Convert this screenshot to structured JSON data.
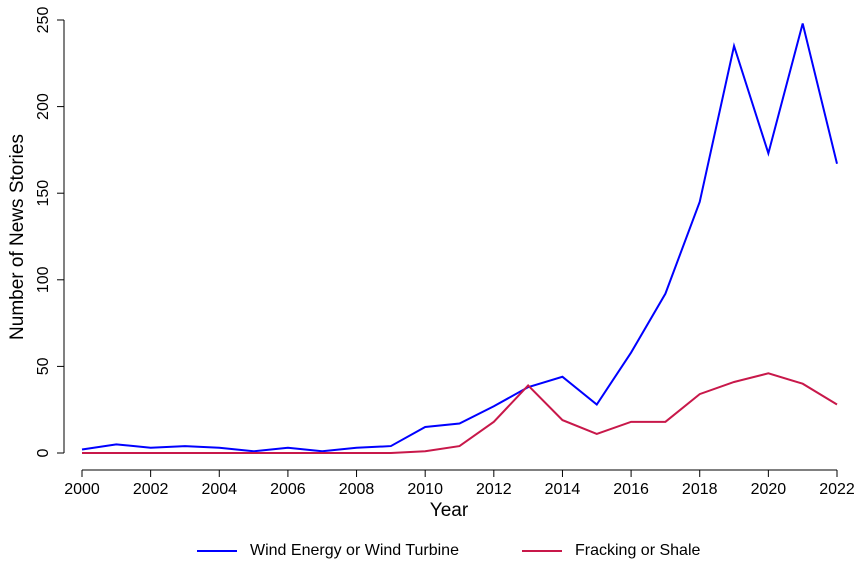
{
  "chart_data": {
    "type": "line",
    "x_label": "Year",
    "y_label": "Number of News Stories",
    "x": [
      2000,
      2001,
      2002,
      2003,
      2004,
      2005,
      2006,
      2007,
      2008,
      2009,
      2010,
      2011,
      2012,
      2013,
      2014,
      2015,
      2016,
      2017,
      2018,
      2019,
      2020,
      2021,
      2022
    ],
    "series": [
      {
        "name": "Wind Energy or Wind Turbine",
        "color": "#0000ff",
        "values": [
          2,
          5,
          3,
          4,
          3,
          1,
          3,
          1,
          3,
          4,
          15,
          17,
          27,
          38,
          44,
          28,
          58,
          92,
          145,
          235,
          173,
          248,
          167
        ]
      },
      {
        "name": "Fracking or Shale",
        "color": "#c8184a",
        "values": [
          0,
          0,
          0,
          0,
          0,
          0,
          0,
          0,
          0,
          0,
          1,
          4,
          18,
          39,
          19,
          11,
          18,
          18,
          34,
          41,
          46,
          40,
          28
        ]
      }
    ],
    "xlim": [
      2000,
      2022
    ],
    "xticks": [
      2000,
      2002,
      2004,
      2006,
      2008,
      2010,
      2012,
      2014,
      2016,
      2018,
      2020,
      2022
    ],
    "ylim": [
      0,
      250
    ],
    "yticks": [
      0,
      50,
      100,
      150,
      200,
      250
    ],
    "legend": "bottom"
  }
}
